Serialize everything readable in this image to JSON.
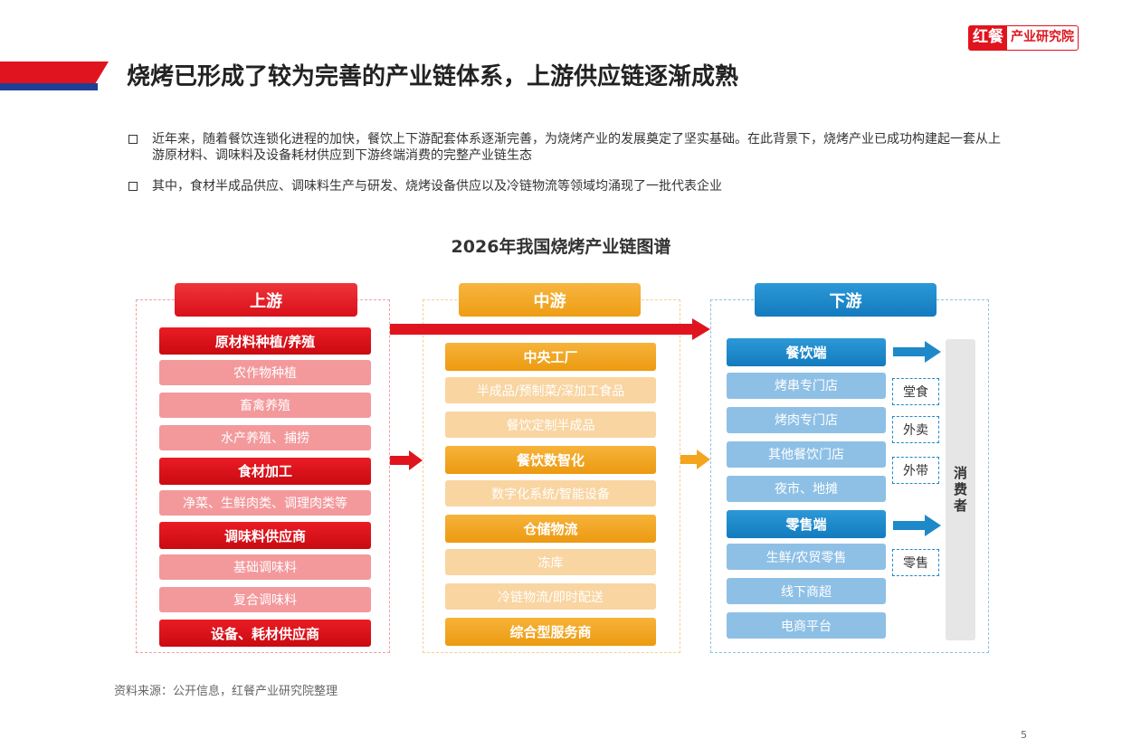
{
  "logo": {
    "mark": "红餐",
    "text": "产业研究院"
  },
  "title": "烧烤已形成了较为完善的产业链体系，上游供应链逐渐成熟",
  "bullets": [
    "近年来，随着餐饮连锁化进程的加快，餐饮上下游配套体系逐渐完善，为烧烤产业的发展奠定了坚实基础。在此背景下，烧烤产业已成功构建起一套从上游原材料、调味料及设备耗材供应到下游终端消费的完整产业链生态",
    "其中，食材半成品供应、调味料生产与研发、烧烤设备供应以及冷链物流等领域均涌现了一批代表企业"
  ],
  "diagram": {
    "title": "2026年我国烧烤产业链图谱",
    "upstream": {
      "header": "上游",
      "groups": [
        {
          "label": "原材料种植/养殖",
          "items": [
            "农作物种植",
            "畜禽养殖",
            "水产养殖、捕捞"
          ]
        },
        {
          "label": "食材加工",
          "items": [
            "净菜、生鲜肉类、调理肉类等"
          ]
        },
        {
          "label": "调味料供应商",
          "items": [
            "基础调味料",
            "复合调味料"
          ]
        },
        {
          "label": "设备、耗材供应商",
          "items": []
        }
      ]
    },
    "midstream": {
      "header": "中游",
      "groups": [
        {
          "label": "中央工厂",
          "items": [
            "半成品/预制菜/深加工食品",
            "餐饮定制半成品"
          ]
        },
        {
          "label": "餐饮数智化",
          "items": [
            "数字化系统/智能设备"
          ]
        },
        {
          "label": "仓储物流",
          "items": [
            "冻库",
            "冷链物流/即时配送"
          ]
        },
        {
          "label": "综合型服务商",
          "items": []
        }
      ]
    },
    "downstream": {
      "header": "下游",
      "groups": [
        {
          "label": "餐饮端",
          "items": [
            "烤串专门店",
            "烤肉专门店",
            "其他餐饮门店",
            "夜市、地摊"
          ]
        },
        {
          "label": "零售端",
          "items": [
            "生鲜/农贸零售",
            "线下商超",
            "电商平台"
          ]
        }
      ],
      "channels": [
        "堂食",
        "外卖",
        "外带",
        "零售"
      ],
      "consumer": "消费者"
    }
  },
  "source": "资料来源：公开信息，红餐产业研究院整理",
  "page_number": "5"
}
